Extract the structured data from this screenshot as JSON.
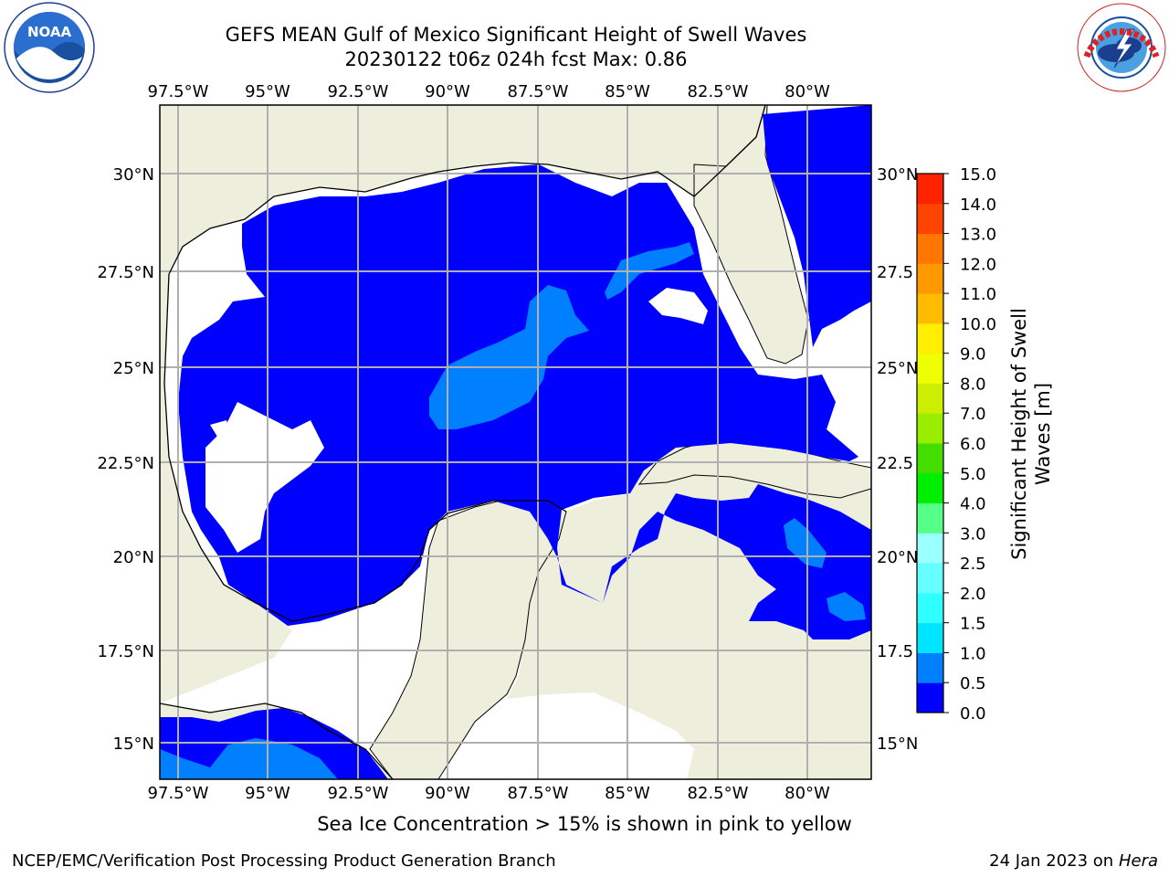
{
  "header": {
    "title_line1": "GEFS MEAN Gulf of Mexico Significant Height of Swell Waves",
    "title_line2": "20230122 t06z 024h fcst   Max: 0.86"
  },
  "logos": {
    "left": {
      "name": "noaa-logo",
      "text": "NOAA"
    },
    "right": {
      "name": "nws-logo"
    }
  },
  "map": {
    "lon_labels": [
      "97.5°W",
      "95°W",
      "92.5°W",
      "90°W",
      "87.5°W",
      "85°W",
      "82.5°W",
      "80°W"
    ],
    "lat_labels": [
      "30°N",
      "27.5°N",
      "25°N",
      "22.5°N",
      "20°N",
      "17.5°N",
      "15°N"
    ],
    "lat_labels_right": [
      "30°N",
      "27.5",
      "25°N",
      "22.5",
      "20°N",
      "17.5",
      "15°N"
    ],
    "colors": {
      "land": "#eeeedd",
      "ocean_low": "#0000ff",
      "ocean_mid": "#0080ff",
      "grid": "#b0b0b0"
    }
  },
  "colorbar": {
    "label_line1": "Significant Height of Swell",
    "label_line2": "Waves [m]",
    "tick_labels": [
      "0.0",
      "0.5",
      "1.0",
      "1.5",
      "2.0",
      "2.5",
      "3.0",
      "4.0",
      "5.0",
      "6.0",
      "7.0",
      "8.0",
      "9.0",
      "10.0",
      "11.0",
      "12.0",
      "13.0",
      "14.0",
      "15.0"
    ],
    "colors": [
      "#0000ff",
      "#0080ff",
      "#00e5ff",
      "#30ffff",
      "#66ffff",
      "#99ffff",
      "#55ff88",
      "#00ee00",
      "#44dd00",
      "#99ee00",
      "#ccee00",
      "#eeff00",
      "#ffee00",
      "#ffbb00",
      "#ff9900",
      "#ff7700",
      "#ff4400",
      "#ff2200"
    ]
  },
  "footer": {
    "sea_ice_note": "Sea Ice Concentration > 15% is shown in pink to yellow",
    "branch": "NCEP/EMC/Verification Post Processing Product Generation Branch",
    "date_prefix": "24 Jan 2023 on ",
    "host": "Hera"
  }
}
